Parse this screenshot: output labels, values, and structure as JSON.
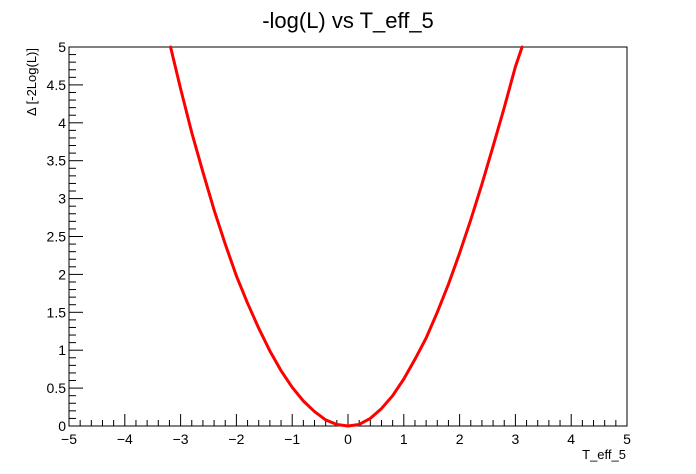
{
  "chart_data": {
    "type": "line",
    "title": "-log(L) vs T_eff_5",
    "xlabel": "T_eff_5",
    "ylabel": "Δ [-2Log(L)]",
    "xlim": [
      -5,
      5
    ],
    "ylim": [
      0,
      5
    ],
    "x_ticks": [
      "−5",
      "−4",
      "−3",
      "−2",
      "−1",
      "0",
      "1",
      "2",
      "3",
      "4",
      "5"
    ],
    "y_ticks": [
      "0",
      "0.5",
      "1",
      "1.5",
      "2",
      "2.5",
      "3",
      "3.5",
      "4",
      "4.5",
      "5"
    ],
    "grid": false,
    "legend": "none",
    "series": [
      {
        "color": "#ff0000",
        "x": [
          -3.18,
          -3.0,
          -2.8,
          -2.6,
          -2.4,
          -2.2,
          -2.0,
          -1.8,
          -1.6,
          -1.4,
          -1.2,
          -1.0,
          -0.8,
          -0.6,
          -0.4,
          -0.2,
          0.0,
          0.2,
          0.4,
          0.6,
          0.8,
          1.0,
          1.2,
          1.4,
          1.6,
          1.8,
          2.0,
          2.2,
          2.4,
          2.6,
          2.8,
          3.0,
          3.12
        ],
        "y": [
          5.0,
          4.45,
          3.87,
          3.35,
          2.85,
          2.4,
          1.98,
          1.62,
          1.29,
          0.99,
          0.73,
          0.51,
          0.33,
          0.19,
          0.08,
          0.02,
          0.0,
          0.02,
          0.1,
          0.23,
          0.4,
          0.62,
          0.88,
          1.16,
          1.5,
          1.87,
          2.28,
          2.72,
          3.19,
          3.69,
          4.2,
          4.74,
          5.0
        ]
      }
    ]
  },
  "colors": {
    "axis": "#000000",
    "curve": "#ff0000",
    "background": "#ffffff"
  }
}
